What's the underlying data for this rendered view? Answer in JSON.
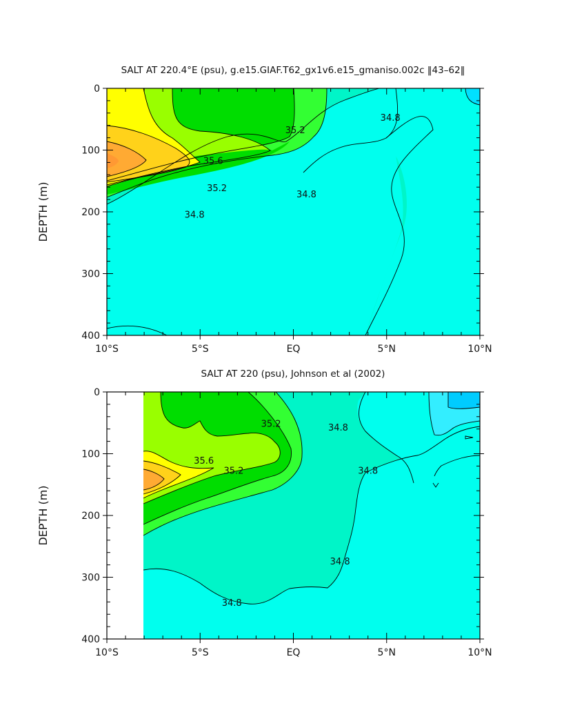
{
  "chart_data": [
    {
      "type": "contour",
      "title": "SALT AT 220.4°E (psu), g.e15.GIAF.T62_gx1v6.e15_gmaniso.002c ‖43–62‖",
      "ylabel": "DEPTH (m)",
      "xlabel": "",
      "x_ticks": [
        "10°S",
        "5°S",
        "EQ",
        "5°N",
        "10°N"
      ],
      "x_tick_values": [
        -10,
        -5,
        0,
        5,
        10
      ],
      "y_ticks": [
        "0",
        "100",
        "200",
        "300",
        "400"
      ],
      "y_tick_values": [
        0,
        100,
        200,
        300,
        400
      ],
      "xlim": [
        -10,
        10
      ],
      "ylim": [
        0,
        400
      ],
      "y_inverted": true,
      "contour_interval": 0.2,
      "contour_labels": [
        {
          "text": "35.6",
          "x": -4.3,
          "y": 118
        },
        {
          "text": "35.2",
          "x": -4.1,
          "y": 162
        },
        {
          "text": "34.8",
          "x": -5.3,
          "y": 205
        },
        {
          "text": "35.2",
          "x": 0.1,
          "y": 68
        },
        {
          "text": "34.8",
          "x": 0.7,
          "y": 172
        },
        {
          "text": "34.8",
          "x": 5.2,
          "y": 48
        }
      ]
    },
    {
      "type": "contour",
      "title": "SALT AT 220 (psu), Johnson et al (2002)",
      "ylabel": "DEPTH (m)",
      "xlabel": "",
      "x_ticks": [
        "10°S",
        "5°S",
        "EQ",
        "5°N",
        "10°N"
      ],
      "x_tick_values": [
        -10,
        -5,
        0,
        5,
        10
      ],
      "y_ticks": [
        "0",
        "100",
        "200",
        "300",
        "400"
      ],
      "y_tick_values": [
        0,
        100,
        200,
        300,
        400
      ],
      "xlim": [
        -10,
        10
      ],
      "ylim": [
        0,
        400
      ],
      "y_inverted": true,
      "contour_interval": 0.2,
      "contour_labels": [
        {
          "text": "35.2",
          "x": -1.2,
          "y": 52
        },
        {
          "text": "35.6",
          "x": -4.8,
          "y": 112
        },
        {
          "text": "35.2",
          "x": -3.2,
          "y": 128
        },
        {
          "text": "34.8",
          "x": 2.4,
          "y": 58
        },
        {
          "text": "34.8",
          "x": 4.0,
          "y": 128
        },
        {
          "text": "34.8",
          "x": 2.5,
          "y": 275
        },
        {
          "text": "34.8",
          "x": -3.3,
          "y": 342
        }
      ]
    }
  ]
}
